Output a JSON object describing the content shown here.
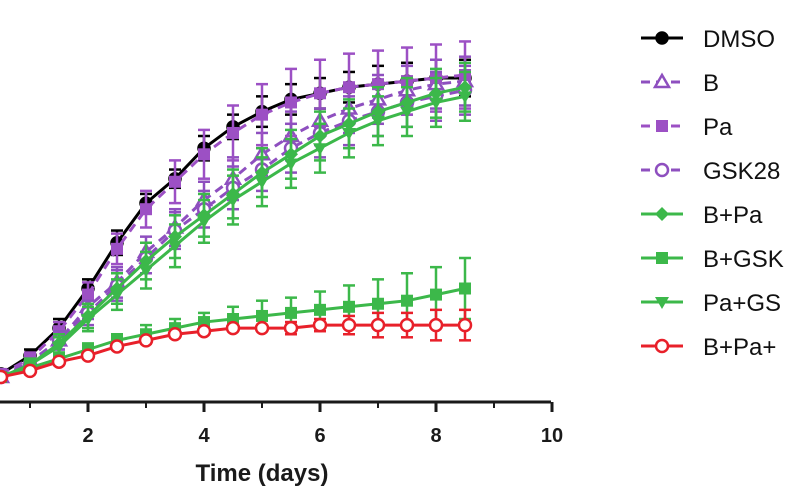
{
  "chart_data": {
    "type": "line",
    "xlabel": "Time (days)",
    "ylabel": "",
    "xlim": [
      0.5,
      10
    ],
    "ylim": [
      0,
      1
    ],
    "x_ticks": [
      2,
      4,
      6,
      8,
      10
    ],
    "x_tick_labels": [
      "2",
      "4",
      "6",
      "8",
      "10"
    ],
    "legend_position": "right",
    "x": [
      0.5,
      1,
      1.5,
      2,
      2.5,
      3,
      3.5,
      4,
      4.5,
      5,
      5.5,
      6,
      6.5,
      7,
      7.5,
      8,
      8.5
    ],
    "series": [
      {
        "name": "DMSO",
        "color": "#000000",
        "marker": "circle-filled",
        "dash": "solid",
        "values": [
          0.02,
          0.08,
          0.17,
          0.3,
          0.45,
          0.58,
          0.66,
          0.76,
          0.83,
          0.88,
          0.92,
          0.94,
          0.96,
          0.97,
          0.98,
          0.99,
          0.99
        ],
        "errors": [
          0.01,
          0.02,
          0.03,
          0.03,
          0.04,
          0.03,
          0.03,
          0.04,
          0.04,
          0.05,
          0.05,
          0.05,
          0.05,
          0.06,
          0.06,
          0.06,
          0.06
        ]
      },
      {
        "name": "B",
        "color": "#8e4fbf",
        "marker": "triangle-open",
        "dash": "dashed",
        "values": [
          0.01,
          0.06,
          0.13,
          0.24,
          0.32,
          0.42,
          0.5,
          0.59,
          0.66,
          0.74,
          0.8,
          0.85,
          0.89,
          0.92,
          0.95,
          0.97,
          0.98
        ],
        "errors": [
          0.01,
          0.02,
          0.03,
          0.04,
          0.05,
          0.05,
          0.06,
          0.06,
          0.07,
          0.07,
          0.08,
          0.08,
          0.08,
          0.08,
          0.08,
          0.08,
          0.08
        ]
      },
      {
        "name": "Pa",
        "color": "#9c50c4",
        "marker": "square-filled",
        "dash": "dashed",
        "values": [
          0.02,
          0.07,
          0.16,
          0.28,
          0.43,
          0.56,
          0.65,
          0.74,
          0.81,
          0.87,
          0.91,
          0.94,
          0.96,
          0.97,
          0.98,
          0.99,
          1.0
        ],
        "errors": [
          0.01,
          0.02,
          0.03,
          0.04,
          0.05,
          0.06,
          0.07,
          0.08,
          0.09,
          0.1,
          0.11,
          0.11,
          0.11,
          0.11,
          0.11,
          0.11,
          0.11
        ]
      },
      {
        "name": "GSK28",
        "color": "#8e4fbf",
        "marker": "circle-open",
        "dash": "dashed",
        "values": [
          0.01,
          0.05,
          0.13,
          0.22,
          0.31,
          0.4,
          0.49,
          0.56,
          0.63,
          0.69,
          0.76,
          0.81,
          0.85,
          0.88,
          0.91,
          0.93,
          0.95
        ],
        "errors": [
          0.01,
          0.02,
          0.03,
          0.04,
          0.05,
          0.05,
          0.06,
          0.06,
          0.07,
          0.07,
          0.08,
          0.08,
          0.08,
          0.08,
          0.08,
          0.08,
          0.08
        ]
      },
      {
        "name": "B+Pa",
        "color": "#3cb84a",
        "marker": "diamond-filled",
        "dash": "solid",
        "values": [
          0.01,
          0.05,
          0.12,
          0.21,
          0.3,
          0.39,
          0.47,
          0.54,
          0.61,
          0.68,
          0.74,
          0.8,
          0.84,
          0.88,
          0.91,
          0.94,
          0.96
        ],
        "errors": [
          0.01,
          0.02,
          0.03,
          0.04,
          0.05,
          0.06,
          0.07,
          0.07,
          0.08,
          0.08,
          0.08,
          0.08,
          0.08,
          0.08,
          0.08,
          0.08,
          0.08
        ]
      },
      {
        "name": "B+GSK",
        "color": "#3cb84a",
        "marker": "square-filled",
        "dash": "solid",
        "values": [
          0.01,
          0.04,
          0.07,
          0.1,
          0.13,
          0.15,
          0.17,
          0.19,
          0.2,
          0.21,
          0.22,
          0.23,
          0.24,
          0.25,
          0.26,
          0.28,
          0.3
        ],
        "errors": [
          0.01,
          0.01,
          0.02,
          0.02,
          0.02,
          0.03,
          0.03,
          0.03,
          0.04,
          0.05,
          0.05,
          0.06,
          0.07,
          0.08,
          0.09,
          0.09,
          0.1
        ]
      },
      {
        "name": "Pa+GS",
        "color": "#3cb84a",
        "marker": "triangle-down-filled",
        "dash": "solid",
        "values": [
          0.01,
          0.05,
          0.11,
          0.2,
          0.28,
          0.36,
          0.44,
          0.52,
          0.59,
          0.65,
          0.71,
          0.76,
          0.81,
          0.85,
          0.88,
          0.91,
          0.93
        ],
        "errors": [
          0.01,
          0.02,
          0.03,
          0.04,
          0.05,
          0.06,
          0.07,
          0.07,
          0.08,
          0.08,
          0.08,
          0.08,
          0.08,
          0.08,
          0.08,
          0.08,
          0.08
        ]
      },
      {
        "name": "B+Pa+",
        "color": "#e8202a",
        "marker": "circle-open",
        "dash": "solid",
        "values": [
          0.01,
          0.03,
          0.06,
          0.08,
          0.11,
          0.13,
          0.15,
          0.16,
          0.17,
          0.17,
          0.17,
          0.18,
          0.18,
          0.18,
          0.18,
          0.18,
          0.18
        ],
        "errors": [
          0.01,
          0.01,
          0.01,
          0.01,
          0.01,
          0.01,
          0.01,
          0.01,
          0.01,
          0.01,
          0.02,
          0.02,
          0.03,
          0.04,
          0.04,
          0.05,
          0.05
        ]
      }
    ]
  }
}
